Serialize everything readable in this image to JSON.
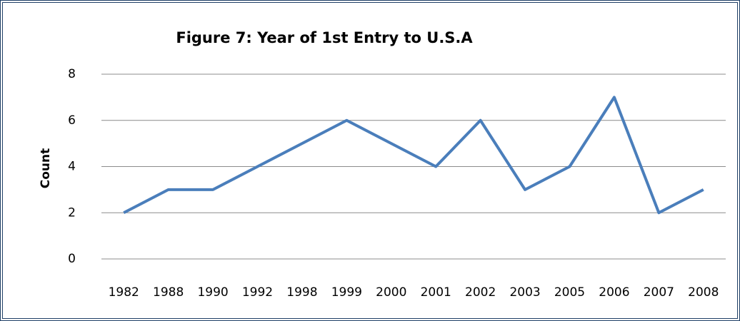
{
  "chart_data": {
    "type": "line",
    "title": "Figure 7: Year of 1st Entry to U.S.A",
    "y_label": "Count",
    "categories": [
      "1982",
      "1988",
      "1990",
      "1992",
      "1998",
      "1999",
      "2000",
      "2001",
      "2002",
      "2003",
      "2005",
      "2006",
      "2007",
      "2008"
    ],
    "series": [
      {
        "name": "Count",
        "color": "#4a7ebb",
        "values": [
          2,
          3,
          3,
          4,
          5,
          6,
          5,
          4,
          6,
          3,
          4,
          7,
          2,
          3
        ]
      }
    ],
    "ylim": [
      0,
      8
    ],
    "yticks": [
      0,
      2,
      4,
      6,
      8
    ],
    "grid": true
  }
}
